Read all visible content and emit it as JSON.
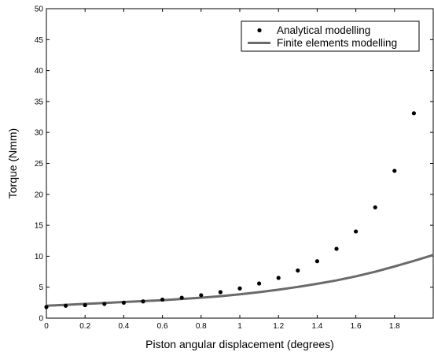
{
  "chart_data": {
    "type": "scatter",
    "xlabel": "Piston angular displacement (degrees)",
    "ylabel": "Torque (Nmm)",
    "xlim": [
      0,
      2.0
    ],
    "ylim": [
      0,
      50
    ],
    "xticks": [
      0,
      0.2,
      0.4,
      0.6,
      0.8,
      1,
      1.2,
      1.4,
      1.6,
      1.8
    ],
    "xtick_labels": [
      "0",
      "0.2",
      "0.4",
      "0.6",
      "0.8",
      "1",
      "1.2",
      "1.4",
      "1.6",
      "1.8"
    ],
    "yticks": [
      0,
      5,
      10,
      15,
      20,
      25,
      30,
      35,
      40,
      45,
      50
    ],
    "ytick_labels": [
      "0",
      "5",
      "10",
      "15",
      "20",
      "25",
      "30",
      "35",
      "40",
      "45",
      "50"
    ],
    "grid": false,
    "legend_position": "top-right",
    "series": [
      {
        "name": "Analytical modelling",
        "style": "markers",
        "color": "#000000",
        "x": [
          0,
          0.1,
          0.2,
          0.3,
          0.4,
          0.5,
          0.6,
          0.7,
          0.8,
          0.9,
          1.0,
          1.1,
          1.2,
          1.3,
          1.4,
          1.5,
          1.6,
          1.7,
          1.8,
          1.9
        ],
        "y": [
          1.8,
          2.0,
          2.1,
          2.3,
          2.5,
          2.7,
          3.0,
          3.3,
          3.7,
          4.2,
          4.8,
          5.6,
          6.5,
          7.7,
          9.2,
          11.2,
          14.0,
          17.9,
          23.8,
          33.1
        ]
      },
      {
        "name": "Finite elements modelling",
        "style": "line",
        "color": "#6a6a6a",
        "x": [
          0,
          0.1,
          0.2,
          0.3,
          0.4,
          0.5,
          0.6,
          0.7,
          0.8,
          0.9,
          1.0,
          1.1,
          1.2,
          1.3,
          1.4,
          1.5,
          1.6,
          1.7,
          1.8,
          1.9,
          2.0
        ],
        "y": [
          2.0,
          2.15,
          2.3,
          2.45,
          2.6,
          2.75,
          2.9,
          3.1,
          3.3,
          3.55,
          3.85,
          4.2,
          4.6,
          5.05,
          5.55,
          6.1,
          6.75,
          7.5,
          8.35,
          9.25,
          10.2
        ]
      }
    ]
  }
}
